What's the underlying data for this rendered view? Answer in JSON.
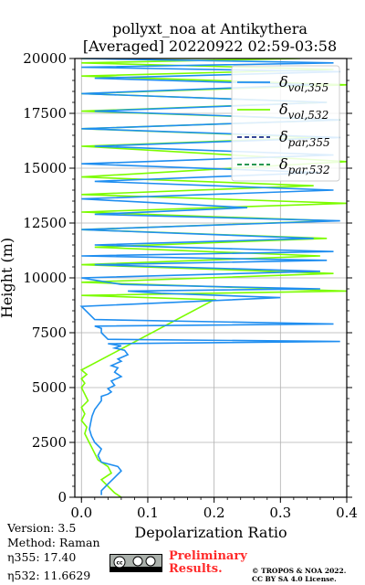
{
  "title_line1": "pollyxt_noa at Antikythera",
  "title_line2": "[Averaged] 20220922 02:59-03:58",
  "footer": {
    "version": "Version: 3.5",
    "method": "Method: Raman",
    "eta355": "η355:  17.40",
    "eta532": "η532: 11.6629",
    "preliminary_line1": "Preliminary",
    "preliminary_line2": "Results.",
    "copyright_line1": "© TROPOS & NOA 2022.",
    "copyright_line2": "CC BY SA 4.0 License.",
    "license_icon": "cc-by-sa-badge"
  },
  "chart_data": {
    "type": "line",
    "xlabel": "Depolarization Ratio",
    "ylabel": "Height (m)",
    "xlim": [
      -0.01,
      0.4
    ],
    "ylim": [
      0,
      20000
    ],
    "x_ticks": [
      "0.0",
      "0.1",
      "0.2",
      "0.3",
      "0.4"
    ],
    "y_ticks": [
      "0",
      "2500",
      "5000",
      "7500",
      "10000",
      "12500",
      "15000",
      "17500",
      "20000"
    ],
    "grid": true,
    "legend_position": "top-right",
    "series": [
      {
        "name": "δvol,355",
        "legend_main": "δ",
        "legend_sub": "vol,355",
        "color": "#1f8ef0",
        "style": "solid",
        "x": [
          0.03,
          0.03,
          0.04,
          0.05,
          0.06,
          0.055,
          0.03,
          0.025,
          0.03,
          0.02,
          0.015,
          0.012,
          0.014,
          0.016,
          0.02,
          0.025,
          0.03,
          0.03,
          0.04,
          0.045,
          0.04,
          0.05,
          0.045,
          0.06,
          0.05,
          0.055,
          0.045,
          0.06,
          0.055,
          0.07,
          0.065,
          0.05,
          0.06,
          0.04,
          0.39,
          0.04,
          0.03,
          0.03,
          0.02,
          0.38,
          0.02,
          0.0,
          0.3,
          0.12,
          0.07,
          0.36,
          0.06,
          0.0,
          0.36,
          0.02,
          0.37,
          0.0,
          0.38,
          0.02,
          0.35,
          0.0,
          0.39,
          0.02,
          0.25,
          0.0,
          0.38,
          0.02,
          0.36,
          0.0,
          0.38,
          0.02,
          0.39,
          0.0,
          0.39,
          0.02,
          0.37,
          0.0,
          0.35,
          0.02,
          0.39,
          0.0,
          0.38,
          0.0
        ],
        "y": [
          100,
          300,
          600,
          900,
          1200,
          1400,
          1600,
          1900,
          2200,
          2500,
          2800,
          3100,
          3400,
          3700,
          4000,
          4200,
          4400,
          4600,
          4700,
          4800,
          4950,
          5100,
          5300,
          5500,
          5700,
          5900,
          6000,
          6200,
          6300,
          6500,
          6700,
          6800,
          6900,
          7000,
          7100,
          7200,
          7500,
          7700,
          7800,
          7900,
          8100,
          8700,
          9100,
          9300,
          9400,
          9500,
          9700,
          10000,
          10300,
          10600,
          10800,
          11000,
          11200,
          11500,
          11800,
          12200,
          12600,
          12900,
          13200,
          13600,
          14000,
          14400,
          14800,
          15200,
          15600,
          16000,
          16400,
          16800,
          17200,
          17600,
          18000,
          18400,
          18800,
          19100,
          19400,
          19600,
          19800,
          20000
        ]
      },
      {
        "name": "δvol,532",
        "legend_main": "δ",
        "legend_sub": "vol,532",
        "color": "#7cfc00",
        "style": "solid",
        "x": [
          0.06,
          0.05,
          0.04,
          0.03,
          0.045,
          0.04,
          0.025,
          0.02,
          0.015,
          0.01,
          0.005,
          0.008,
          0.0,
          0.005,
          0.0,
          0.01,
          0.005,
          0.0,
          0.005,
          0.0,
          0.008,
          0.0,
          0.2,
          0.0,
          0.4,
          0.0,
          0.38,
          0.0,
          0.36,
          0.02,
          0.37,
          0.0,
          0.38,
          0.0,
          0.4,
          0.0,
          0.35,
          0.0,
          0.4,
          0.0,
          0.36,
          0.0,
          0.39,
          0.0,
          0.37,
          0.0,
          0.4,
          0.0,
          0.38,
          0.0,
          0.33,
          0.0
        ],
        "y": [
          0,
          200,
          500,
          800,
          1100,
          1400,
          1700,
          2000,
          2300,
          2600,
          2900,
          3200,
          3500,
          3800,
          4100,
          4400,
          4700,
          5000,
          5200,
          5400,
          5600,
          5800,
          9000,
          9200,
          9400,
          9800,
          10200,
          10600,
          11000,
          11400,
          11800,
          12200,
          12600,
          13000,
          13400,
          13800,
          14200,
          14600,
          15300,
          16000,
          16400,
          16800,
          17200,
          17600,
          18000,
          18400,
          18800,
          19200,
          19500,
          19800,
          20000,
          20000
        ]
      },
      {
        "name": "δpar,355",
        "legend_main": "δ",
        "legend_sub": "par,355",
        "color": "#1a2f8a",
        "style": "dashed",
        "x": [],
        "y": []
      },
      {
        "name": "δpar,532",
        "legend_main": "δ",
        "legend_sub": "par,532",
        "color": "#0a8a3a",
        "style": "dashed",
        "x": [],
        "y": []
      }
    ]
  }
}
